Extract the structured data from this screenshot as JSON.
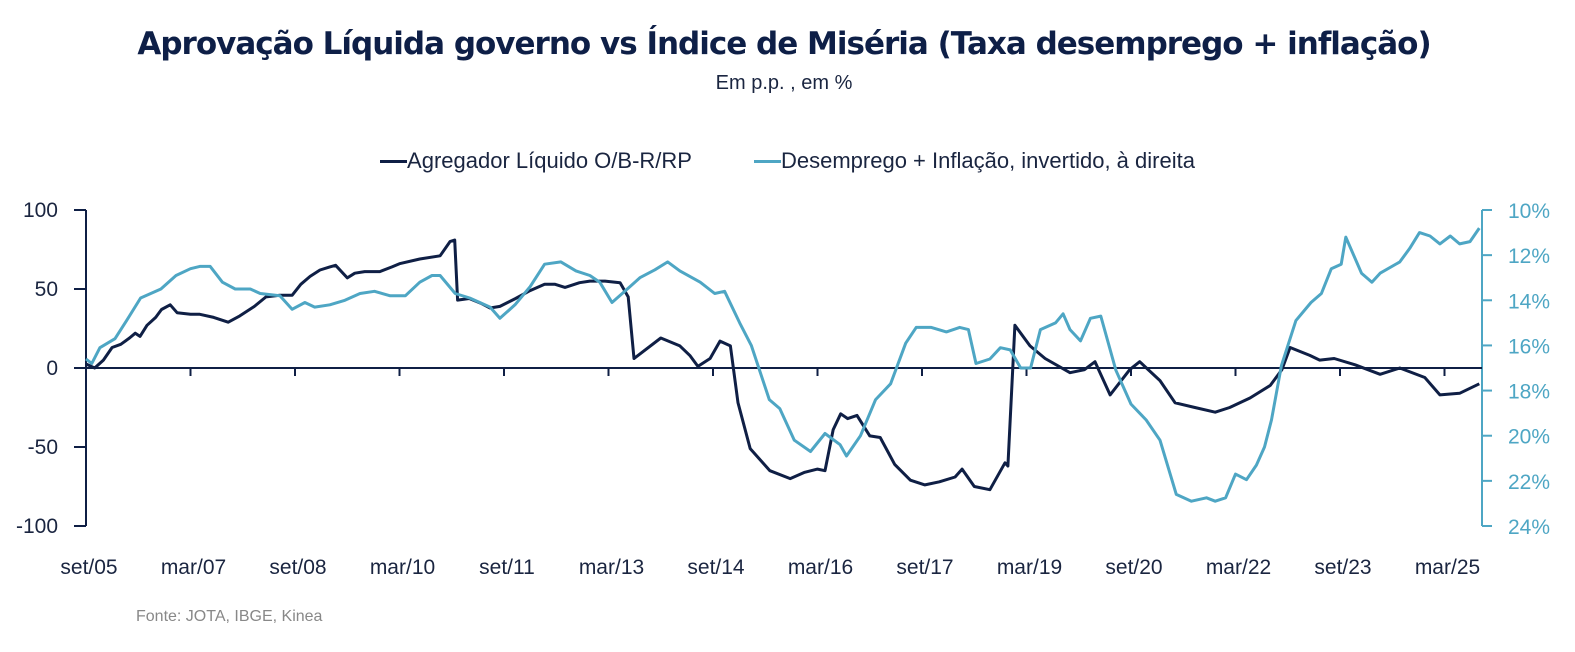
{
  "chart_data": {
    "type": "line",
    "title": "Aprovação Líquida governo vs Índice de Miséria (Taxa desemprego + inflação)",
    "subtitle": "Em p.p. , em %",
    "source": "Fonte: JOTA, IBGE, Kinea",
    "x_unit": "months since set/05",
    "x_range": [
      0,
      240
    ],
    "x_ticks": [
      {
        "m": 0,
        "label": "set/05"
      },
      {
        "m": 18,
        "label": "mar/07"
      },
      {
        "m": 36,
        "label": "set/08"
      },
      {
        "m": 54,
        "label": "mar/10"
      },
      {
        "m": 72,
        "label": "set/11"
      },
      {
        "m": 90,
        "label": "mar/13"
      },
      {
        "m": 108,
        "label": "set/14"
      },
      {
        "m": 126,
        "label": "mar/16"
      },
      {
        "m": 144,
        "label": "set/17"
      },
      {
        "m": 162,
        "label": "mar/19"
      },
      {
        "m": 180,
        "label": "set/20"
      },
      {
        "m": 198,
        "label": "mar/22"
      },
      {
        "m": 216,
        "label": "set/23"
      },
      {
        "m": 234,
        "label": "mar/25"
      }
    ],
    "y_left": {
      "range": [
        -100,
        100
      ],
      "ticks": [
        100,
        50,
        0,
        -50,
        -100
      ],
      "tick_labels": [
        "100",
        "50",
        "0",
        "-50",
        "-100"
      ]
    },
    "y_right": {
      "range": [
        10,
        24
      ],
      "inverted": true,
      "ticks": [
        10,
        12,
        14,
        16,
        18,
        20,
        22,
        24
      ],
      "tick_labels": [
        "10%",
        "12%",
        "14%",
        "16%",
        "18%",
        "20%",
        "22%",
        "24%"
      ]
    },
    "legend_position": "top-center",
    "grid": false,
    "series": [
      {
        "name": "Agregador Líquido O/B-R/RP",
        "axis": "left",
        "color": "#0f1f45",
        "points": [
          [
            0,
            2.5
          ],
          [
            1.5,
            0
          ],
          [
            3,
            5
          ],
          [
            4.5,
            13
          ],
          [
            6,
            15
          ],
          [
            7.5,
            19
          ],
          [
            8.5,
            22
          ],
          [
            9.3,
            20
          ],
          [
            10.5,
            27
          ],
          [
            12,
            32
          ],
          [
            13,
            37
          ],
          [
            14.5,
            40
          ],
          [
            15.7,
            35
          ],
          [
            18,
            34
          ],
          [
            19.6,
            34
          ],
          [
            22,
            32
          ],
          [
            24.5,
            29
          ],
          [
            26.5,
            33
          ],
          [
            29,
            39
          ],
          [
            31,
            45
          ],
          [
            33.4,
            46
          ],
          [
            35.5,
            46
          ],
          [
            37,
            53
          ],
          [
            38.6,
            58
          ],
          [
            40.3,
            62
          ],
          [
            42,
            64
          ],
          [
            43,
            65
          ],
          [
            45,
            57
          ],
          [
            46.3,
            60
          ],
          [
            48,
            61
          ],
          [
            50.6,
            61
          ],
          [
            52.7,
            64
          ],
          [
            54,
            66
          ],
          [
            57.5,
            69
          ],
          [
            61,
            71
          ],
          [
            62.7,
            80
          ],
          [
            63.5,
            81
          ],
          [
            64,
            43
          ],
          [
            66,
            44
          ],
          [
            68,
            41
          ],
          [
            69.6,
            38
          ],
          [
            71.3,
            39
          ],
          [
            74,
            44
          ],
          [
            76.5,
            49
          ],
          [
            79,
            53
          ],
          [
            80.8,
            53
          ],
          [
            82.5,
            51
          ],
          [
            85,
            54
          ],
          [
            86.8,
            55
          ],
          [
            89.4,
            55
          ],
          [
            92,
            54
          ],
          [
            93.4,
            45
          ],
          [
            94.4,
            6
          ],
          [
            99,
            19
          ],
          [
            102.3,
            14
          ],
          [
            104,
            8
          ],
          [
            105.4,
            1
          ],
          [
            107.5,
            6
          ],
          [
            109.2,
            17
          ],
          [
            111,
            14
          ],
          [
            112.3,
            -22
          ],
          [
            114.4,
            -51
          ],
          [
            117.8,
            -65
          ],
          [
            121.3,
            -70
          ],
          [
            123.8,
            -66
          ],
          [
            126,
            -64
          ],
          [
            127.3,
            -65
          ],
          [
            128.7,
            -39
          ],
          [
            130,
            -29
          ],
          [
            131.2,
            -32
          ],
          [
            132.8,
            -30
          ],
          [
            135,
            -43
          ],
          [
            136.8,
            -44
          ],
          [
            139.3,
            -61
          ],
          [
            142,
            -71
          ],
          [
            144.5,
            -74
          ],
          [
            147,
            -72
          ],
          [
            149.7,
            -69
          ],
          [
            150.9,
            -64
          ],
          [
            153,
            -75
          ],
          [
            155.7,
            -77
          ],
          [
            158.3,
            -60
          ],
          [
            158.8,
            -62
          ],
          [
            160,
            27
          ],
          [
            162.6,
            14
          ],
          [
            165.2,
            6
          ],
          [
            169.5,
            -3
          ],
          [
            172,
            -1
          ],
          [
            173.8,
            4
          ],
          [
            176.4,
            -17
          ],
          [
            179.8,
            -1
          ],
          [
            181.5,
            4
          ],
          [
            185,
            -8
          ],
          [
            187.6,
            -22
          ],
          [
            191,
            -25
          ],
          [
            194.5,
            -28
          ],
          [
            197,
            -25
          ],
          [
            200.5,
            -19
          ],
          [
            204,
            -11
          ],
          [
            206,
            -1
          ],
          [
            207.4,
            13
          ],
          [
            210.8,
            8
          ],
          [
            212.5,
            5
          ],
          [
            215,
            6
          ],
          [
            218.6,
            2
          ],
          [
            222.9,
            -4
          ],
          [
            226.3,
            0
          ],
          [
            230.6,
            -6
          ],
          [
            233.2,
            -17
          ],
          [
            236.6,
            -16
          ],
          [
            240,
            -10
          ]
        ]
      },
      {
        "name": "Desemprego + Inflação, invertido, à direita",
        "axis": "right",
        "color": "#4ea6c4",
        "points": [
          [
            0,
            16.6
          ],
          [
            1,
            16.8
          ],
          [
            2.4,
            16.1
          ],
          [
            5,
            15.7
          ],
          [
            7,
            14.9
          ],
          [
            9.4,
            13.9
          ],
          [
            12.9,
            13.5
          ],
          [
            15.5,
            12.9
          ],
          [
            18,
            12.6
          ],
          [
            19.6,
            12.5
          ],
          [
            21.4,
            12.5
          ],
          [
            23.5,
            13.2
          ],
          [
            25.7,
            13.5
          ],
          [
            28.3,
            13.5
          ],
          [
            30,
            13.7
          ],
          [
            33.4,
            13.8
          ],
          [
            35.5,
            14.4
          ],
          [
            37.7,
            14.1
          ],
          [
            39.4,
            14.3
          ],
          [
            42,
            14.2
          ],
          [
            44.6,
            14.0
          ],
          [
            47.2,
            13.7
          ],
          [
            49.7,
            13.6
          ],
          [
            52.4,
            13.8
          ],
          [
            55,
            13.8
          ],
          [
            57.5,
            13.2
          ],
          [
            59.6,
            12.9
          ],
          [
            61,
            12.9
          ],
          [
            63.6,
            13.7
          ],
          [
            66.1,
            13.9
          ],
          [
            69.6,
            14.3
          ],
          [
            71.3,
            14.8
          ],
          [
            73.9,
            14.2
          ],
          [
            76.5,
            13.4
          ],
          [
            79,
            12.4
          ],
          [
            81.8,
            12.3
          ],
          [
            84.4,
            12.7
          ],
          [
            86.8,
            12.9
          ],
          [
            88.5,
            13.2
          ],
          [
            90.6,
            14.1
          ],
          [
            92.8,
            13.6
          ],
          [
            95.4,
            13.0
          ],
          [
            98,
            12.65
          ],
          [
            100.2,
            12.3
          ],
          [
            102.3,
            12.7
          ],
          [
            105.8,
            13.2
          ],
          [
            108.3,
            13.7
          ],
          [
            110,
            13.6
          ],
          [
            112.6,
            15.0
          ],
          [
            114.6,
            16.0
          ],
          [
            117.7,
            18.4
          ],
          [
            119.5,
            18.8
          ],
          [
            122,
            20.2
          ],
          [
            124.8,
            20.7
          ],
          [
            127.3,
            19.9
          ],
          [
            129.9,
            20.4
          ],
          [
            131,
            20.9
          ],
          [
            133.4,
            20.0
          ],
          [
            136,
            18.4
          ],
          [
            138.6,
            17.7
          ],
          [
            141.2,
            15.9
          ],
          [
            143,
            15.2
          ],
          [
            145.6,
            15.2
          ],
          [
            148.2,
            15.4
          ],
          [
            150.5,
            15.2
          ],
          [
            152,
            15.3
          ],
          [
            153.3,
            16.8
          ],
          [
            155.7,
            16.6
          ],
          [
            157.5,
            16.1
          ],
          [
            159.2,
            16.2
          ],
          [
            161,
            17.0
          ],
          [
            162.7,
            17.0
          ],
          [
            164.4,
            15.3
          ],
          [
            167,
            15.0
          ],
          [
            168.3,
            14.6
          ],
          [
            169.5,
            15.3
          ],
          [
            171.3,
            15.8
          ],
          [
            173,
            14.8
          ],
          [
            174.8,
            14.7
          ],
          [
            177.4,
            17.1
          ],
          [
            180,
            18.6
          ],
          [
            182.6,
            19.3
          ],
          [
            185,
            20.2
          ],
          [
            187.8,
            22.6
          ],
          [
            190.4,
            22.9
          ],
          [
            193,
            22.75
          ],
          [
            194.5,
            22.9
          ],
          [
            196.3,
            22.75
          ],
          [
            198,
            21.7
          ],
          [
            199.9,
            21.95
          ],
          [
            201.6,
            21.3
          ],
          [
            203,
            20.5
          ],
          [
            204.2,
            19.3
          ],
          [
            205.9,
            16.9
          ],
          [
            208.4,
            14.9
          ],
          [
            211,
            14.1
          ],
          [
            212.8,
            13.7
          ],
          [
            214.5,
            12.6
          ],
          [
            216.2,
            12.4
          ],
          [
            217,
            11.2
          ],
          [
            219.7,
            12.8
          ],
          [
            221.5,
            13.2
          ],
          [
            222.9,
            12.8
          ],
          [
            226.3,
            12.3
          ],
          [
            228,
            11.7
          ],
          [
            229.7,
            11.0
          ],
          [
            231.5,
            11.15
          ],
          [
            233.2,
            11.5
          ],
          [
            235,
            11.15
          ],
          [
            236.6,
            11.5
          ],
          [
            238.4,
            11.4
          ],
          [
            240,
            10.8
          ]
        ]
      }
    ]
  },
  "legend": {
    "items": [
      {
        "label": "Agregador Líquido O/B-R/RP",
        "color": "#0f1f45"
      },
      {
        "label": "Desemprego + Inflação, invertido, à direita",
        "color": "#4ea6c4"
      }
    ]
  }
}
